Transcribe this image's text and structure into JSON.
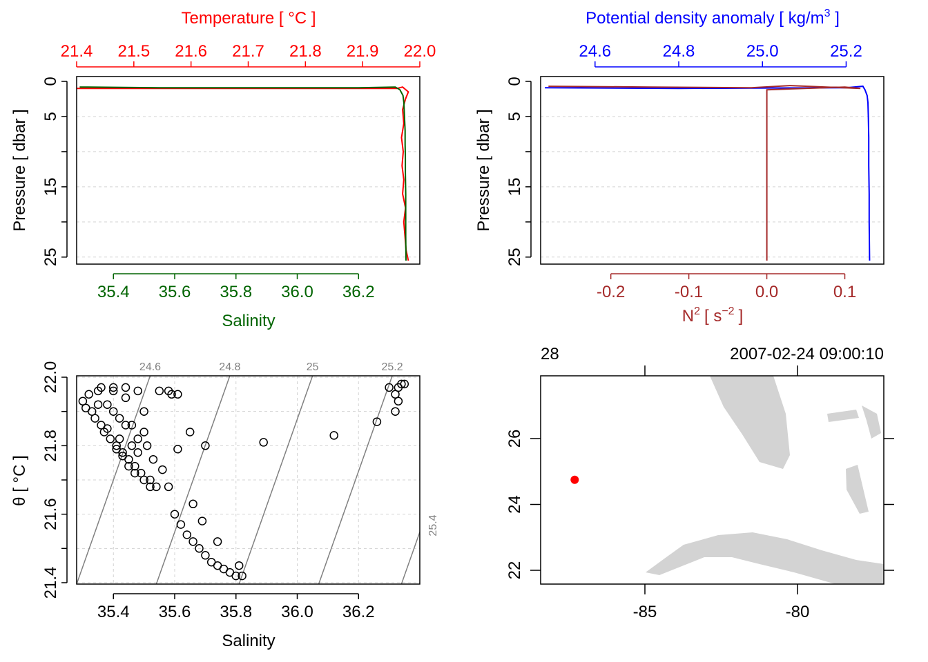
{
  "colors": {
    "temperature": "#ff0000",
    "salinity": "#006400",
    "density": "#0000ff",
    "n2": "#a52a2a",
    "grid": "#d3d3d3",
    "isopycnal": "#808080",
    "land": "#d3d3d3",
    "station": "#ff0000"
  },
  "chart_data": [
    {
      "id": "temp_sal_profile",
      "type": "line",
      "title": "Temperature [ °C ]",
      "xlabel": "Salinity",
      "ylabel": "Pressure [ dbar ]",
      "top_axis_ticks": [
        "21.4",
        "21.5",
        "21.6",
        "21.7",
        "21.8",
        "21.9",
        "22.0"
      ],
      "top_axis_range": [
        21.4,
        22.0
      ],
      "bottom_axis_ticks": [
        "35.4",
        "35.6",
        "35.8",
        "36.0",
        "36.2"
      ],
      "bottom_axis_range": [
        35.28,
        36.4
      ],
      "y_ticks": [
        "0",
        "5",
        "15",
        "25"
      ],
      "y_range": [
        0,
        26
      ],
      "series": [
        {
          "name": "Temperature",
          "axis": "top",
          "x": [
            21.4,
            21.7,
            21.96,
            21.97,
            21.98,
            21.975,
            21.97,
            21.972,
            21.968,
            21.971,
            21.969,
            21.972,
            21.97,
            21.975,
            21.972,
            21.974,
            21.976,
            21.98
          ],
          "pressure": [
            1.0,
            1.0,
            1.0,
            0.8,
            1.5,
            2.5,
            4,
            6,
            8,
            10,
            12,
            14,
            16,
            18,
            20,
            22,
            24,
            25.5
          ]
        },
        {
          "name": "Salinity",
          "axis": "bottom",
          "x": [
            35.29,
            35.55,
            36.2,
            36.32,
            36.335,
            36.345,
            36.348,
            36.35,
            36.352,
            36.352,
            36.353,
            36.353,
            36.354,
            36.354,
            36.354,
            36.355
          ],
          "pressure": [
            0.8,
            0.9,
            0.9,
            0.8,
            1.2,
            2,
            3,
            5,
            7,
            9,
            11,
            13,
            16,
            19,
            22,
            25.5
          ]
        }
      ]
    },
    {
      "id": "density_n2_profile",
      "type": "line",
      "title": "Potential density anomaly [ kg/m³ ]",
      "title_text": "Potential density anomaly [ kg/m",
      "title_sup": "3",
      "title_close": " ]",
      "xlabel_main": "N",
      "xlabel_sup": "2",
      "xlabel_units": "[ s",
      "xlabel_units_sup": "−2",
      "xlabel_close": "]",
      "ylabel": "Pressure [ dbar ]",
      "top_axis_ticks": [
        "24.6",
        "24.8",
        "25.0",
        "25.2"
      ],
      "top_axis_range": [
        24.47,
        25.29
      ],
      "bottom_axis_ticks": [
        "-0.2",
        "-0.1",
        "0.0",
        "0.1"
      ],
      "bottom_axis_range": [
        -0.29,
        0.15
      ],
      "y_ticks": [
        "0",
        "5",
        "15",
        "25"
      ],
      "y_range": [
        0,
        26
      ],
      "series": [
        {
          "name": "Potential density anomaly",
          "axis": "top",
          "x": [
            24.48,
            24.8,
            25.2,
            25.24,
            25.245,
            25.25,
            25.252,
            25.253,
            25.254,
            25.254,
            25.255,
            25.255,
            25.256
          ],
          "pressure": [
            0.9,
            1.0,
            0.9,
            0.7,
            1.2,
            2,
            3,
            5,
            8,
            12,
            16,
            20,
            25.5
          ]
        },
        {
          "name": "N2",
          "axis": "bottom",
          "x": [
            -0.28,
            -0.15,
            -0.02,
            0.03,
            0.12,
            0.1,
            0.0,
            0.0,
            0.0,
            0.0
          ],
          "pressure": [
            0.7,
            0.8,
            0.9,
            0.6,
            1.0,
            0.8,
            1.2,
            5,
            15,
            25.5
          ]
        }
      ]
    },
    {
      "id": "ts_diagram",
      "type": "scatter",
      "xlabel": "Salinity",
      "ylabel": "θ [ °C ]",
      "x_ticks": [
        "35.4",
        "35.6",
        "35.8",
        "36.0",
        "36.2"
      ],
      "x_range": [
        35.28,
        36.4
      ],
      "y_ticks": [
        "21.4",
        "21.6",
        "21.8",
        "22.0"
      ],
      "y_range": [
        21.4,
        22.0
      ],
      "isopycnal_labels": [
        "24.6",
        "24.8",
        "25",
        "25.2",
        "25.4"
      ],
      "isopycnals": [
        {
          "label": "24.6",
          "x_bottom": 35.28,
          "x_top": 35.52
        },
        {
          "label": "24.8",
          "x_bottom": 35.54,
          "x_top": 35.78
        },
        {
          "label": "25",
          "x_bottom": 35.81,
          "x_top": 36.05
        },
        {
          "label": "25.2",
          "x_bottom": 36.07,
          "x_top": 36.31
        },
        {
          "label": "25.4",
          "x_bottom": 36.34,
          "x_top": 36.58
        }
      ],
      "points": [
        [
          35.3,
          21.93
        ],
        [
          35.31,
          21.91
        ],
        [
          35.32,
          21.95
        ],
        [
          35.33,
          21.9
        ],
        [
          35.34,
          21.88
        ],
        [
          35.35,
          21.96
        ],
        [
          35.36,
          21.86
        ],
        [
          35.37,
          21.84
        ],
        [
          35.38,
          21.92
        ],
        [
          35.39,
          21.82
        ],
        [
          35.4,
          21.96
        ],
        [
          35.41,
          21.8
        ],
        [
          35.42,
          21.88
        ],
        [
          35.43,
          21.78
        ],
        [
          35.44,
          21.94
        ],
        [
          35.45,
          21.76
        ],
        [
          35.46,
          21.86
        ],
        [
          35.47,
          21.74
        ],
        [
          35.48,
          21.82
        ],
        [
          35.49,
          21.72
        ],
        [
          35.5,
          21.9
        ],
        [
          35.51,
          21.8
        ],
        [
          35.52,
          21.7
        ],
        [
          35.53,
          21.76
        ],
        [
          35.54,
          21.68
        ],
        [
          35.35,
          21.92
        ],
        [
          35.38,
          21.85
        ],
        [
          35.4,
          21.9
        ],
        [
          35.42,
          21.82
        ],
        [
          35.44,
          21.86
        ],
        [
          35.46,
          21.8
        ],
        [
          35.48,
          21.78
        ],
        [
          35.5,
          21.84
        ],
        [
          35.36,
          21.97
        ],
        [
          35.4,
          21.97
        ],
        [
          35.44,
          21.97
        ],
        [
          35.48,
          21.96
        ],
        [
          35.55,
          21.96
        ],
        [
          35.58,
          21.96
        ],
        [
          35.59,
          21.95
        ],
        [
          35.61,
          21.95
        ],
        [
          35.65,
          21.84
        ],
        [
          35.7,
          21.8
        ],
        [
          35.61,
          21.79
        ],
        [
          35.56,
          21.73
        ],
        [
          35.58,
          21.68
        ],
        [
          35.66,
          21.63
        ],
        [
          35.6,
          21.6
        ],
        [
          35.62,
          21.57
        ],
        [
          35.64,
          21.54
        ],
        [
          35.66,
          21.52
        ],
        [
          35.68,
          21.5
        ],
        [
          35.7,
          21.48
        ],
        [
          35.72,
          21.46
        ],
        [
          35.74,
          21.45
        ],
        [
          35.76,
          21.44
        ],
        [
          35.78,
          21.43
        ],
        [
          35.8,
          21.42
        ],
        [
          35.82,
          21.42
        ],
        [
          35.81,
          21.45
        ],
        [
          35.74,
          21.52
        ],
        [
          35.69,
          21.58
        ],
        [
          35.89,
          21.81
        ],
        [
          36.12,
          21.83
        ],
        [
          36.26,
          21.87
        ],
        [
          36.32,
          21.9
        ],
        [
          36.3,
          21.97
        ],
        [
          36.33,
          21.97
        ],
        [
          36.34,
          21.98
        ],
        [
          36.35,
          21.98
        ],
        [
          36.33,
          21.93
        ],
        [
          36.32,
          21.95
        ],
        [
          35.52,
          21.68
        ],
        [
          35.5,
          21.7
        ],
        [
          35.47,
          21.72
        ],
        [
          35.45,
          21.74
        ],
        [
          35.43,
          21.77
        ],
        [
          35.41,
          21.79
        ]
      ]
    },
    {
      "id": "station_map",
      "type": "scatter",
      "top_left_label": "28",
      "top_right_label": "2007-02-24 09:00:10",
      "x_ticks": [
        "-85",
        "-80"
      ],
      "x_range": [
        -88.5,
        -77.0
      ],
      "y_ticks": [
        "22",
        "24",
        "26"
      ],
      "y_range": [
        21.5,
        28.0
      ],
      "station": {
        "lon": -87.3,
        "lat": 24.75
      }
    }
  ]
}
